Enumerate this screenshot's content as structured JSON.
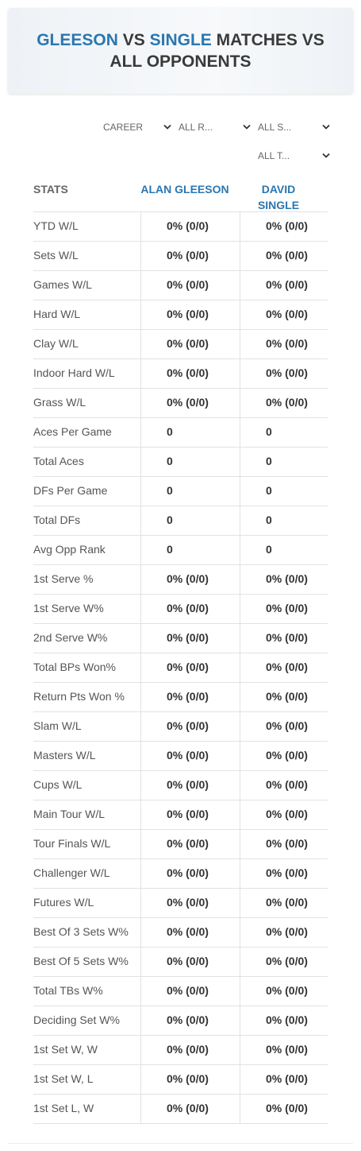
{
  "header": {
    "title": {
      "part1": "GLEESON",
      "part2": "VS",
      "part3": "SINGLE",
      "part4": "MATCHES VS ALL OPPONENTS"
    }
  },
  "filters": [
    "CAREER",
    "ALL R...",
    "ALL S...",
    "ALL T..."
  ],
  "table": {
    "columns": [
      "STATS",
      "ALAN GLEESON",
      "DAVID SINGLE"
    ],
    "rows": [
      [
        "YTD W/L",
        "0% (0/0)",
        "0% (0/0)"
      ],
      [
        "Sets W/L",
        "0% (0/0)",
        "0% (0/0)"
      ],
      [
        "Games W/L",
        "0% (0/0)",
        "0% (0/0)"
      ],
      [
        "Hard W/L",
        "0% (0/0)",
        "0% (0/0)"
      ],
      [
        "Clay W/L",
        "0% (0/0)",
        "0% (0/0)"
      ],
      [
        "Indoor Hard W/L",
        "0% (0/0)",
        "0% (0/0)"
      ],
      [
        "Grass W/L",
        "0% (0/0)",
        "0% (0/0)"
      ],
      [
        "Aces Per Game",
        "0",
        "0"
      ],
      [
        "Total Aces",
        "0",
        "0"
      ],
      [
        "DFs Per Game",
        "0",
        "0"
      ],
      [
        "Total DFs",
        "0",
        "0"
      ],
      [
        "Avg Opp Rank",
        "0",
        "0"
      ],
      [
        "1st Serve %",
        "0% (0/0)",
        "0% (0/0)"
      ],
      [
        "1st Serve W%",
        "0% (0/0)",
        "0% (0/0)"
      ],
      [
        "2nd Serve W%",
        "0% (0/0)",
        "0% (0/0)"
      ],
      [
        "Total BPs Won%",
        "0% (0/0)",
        "0% (0/0)"
      ],
      [
        "Return Pts Won %",
        "0% (0/0)",
        "0% (0/0)"
      ],
      [
        "Slam W/L",
        "0% (0/0)",
        "0% (0/0)"
      ],
      [
        "Masters W/L",
        "0% (0/0)",
        "0% (0/0)"
      ],
      [
        "Cups W/L",
        "0% (0/0)",
        "0% (0/0)"
      ],
      [
        "Main Tour W/L",
        "0% (0/0)",
        "0% (0/0)"
      ],
      [
        "Tour Finals W/L",
        "0% (0/0)",
        "0% (0/0)"
      ],
      [
        "Challenger W/L",
        "0% (0/0)",
        "0% (0/0)"
      ],
      [
        "Futures W/L",
        "0% (0/0)",
        "0% (0/0)"
      ],
      [
        "Best Of 3 Sets W%",
        "0% (0/0)",
        "0% (0/0)"
      ],
      [
        "Best Of 5 Sets W%",
        "0% (0/0)",
        "0% (0/0)"
      ],
      [
        "Total TBs W%",
        "0% (0/0)",
        "0% (0/0)"
      ],
      [
        "Deciding Set W%",
        "0% (0/0)",
        "0% (0/0)"
      ],
      [
        "1st Set W, W",
        "0% (0/0)",
        "0% (0/0)"
      ],
      [
        "1st Set W, L",
        "0% (0/0)",
        "0% (0/0)"
      ],
      [
        "1st Set L, W",
        "0% (0/0)",
        "0% (0/0)"
      ]
    ]
  }
}
